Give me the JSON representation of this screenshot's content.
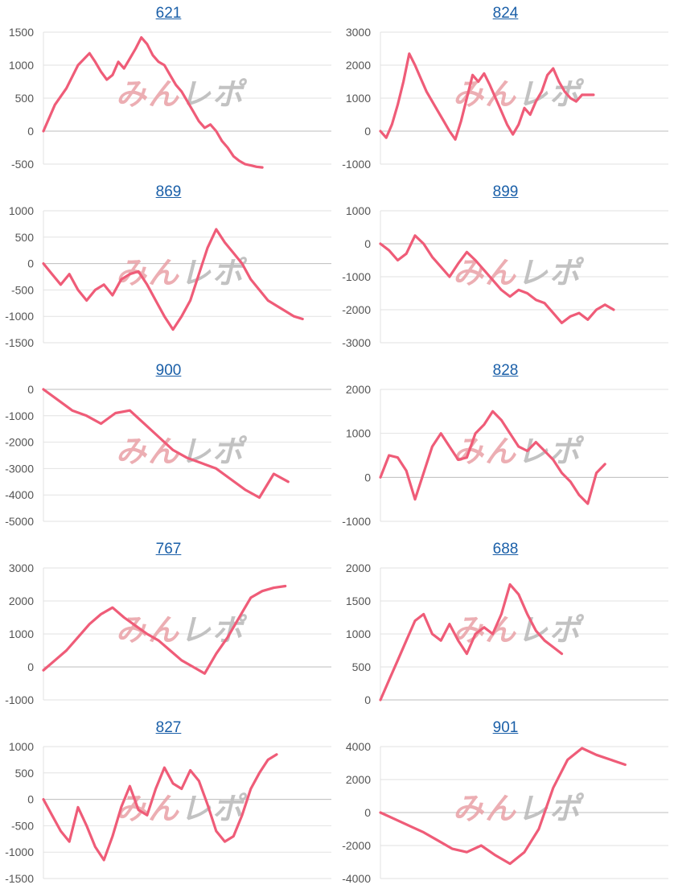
{
  "watermark": "みんレポ",
  "colors": {
    "line": "#ef5c78",
    "grid": "#e2e2e2",
    "zero": "#bdbdbd",
    "link": "#1a5fa8",
    "watermark_pink": "#e9a1a6",
    "watermark_gray": "#b8b8b8"
  },
  "chart_data": [
    {
      "type": "line",
      "title": "621",
      "ylim": [
        -500,
        1500
      ],
      "ticks": [
        1500,
        1000,
        500,
        0,
        -500
      ],
      "xlim": [
        0,
        100
      ],
      "x": [
        0,
        4,
        8,
        12,
        16,
        18,
        20,
        22,
        24,
        26,
        28,
        30,
        32,
        34,
        36,
        38,
        40,
        42,
        44,
        46,
        48,
        50,
        52,
        54,
        56,
        58,
        60,
        62,
        64,
        66,
        68,
        70,
        72,
        74,
        76
      ],
      "y": [
        0,
        400,
        650,
        1000,
        1180,
        1050,
        900,
        780,
        850,
        1050,
        950,
        1100,
        1250,
        1420,
        1320,
        1150,
        1050,
        1000,
        850,
        700,
        600,
        450,
        300,
        150,
        50,
        100,
        0,
        -150,
        -250,
        -380,
        -450,
        -500,
        -520,
        -540,
        -550
      ]
    },
    {
      "type": "line",
      "title": "824",
      "ylim": [
        -1000,
        3000
      ],
      "ticks": [
        3000,
        2000,
        1000,
        0,
        -1000
      ],
      "xlim": [
        0,
        100
      ],
      "x": [
        0,
        2,
        4,
        6,
        8,
        10,
        12,
        14,
        16,
        18,
        20,
        22,
        24,
        26,
        28,
        30,
        32,
        34,
        36,
        38,
        40,
        42,
        44,
        46,
        48,
        50,
        52,
        54,
        56,
        58,
        60,
        62,
        64,
        66,
        68,
        70,
        72,
        74
      ],
      "y": [
        0,
        -200,
        200,
        800,
        1500,
        2350,
        2000,
        1600,
        1200,
        900,
        600,
        300,
        0,
        -250,
        300,
        1000,
        1700,
        1500,
        1750,
        1400,
        1000,
        600,
        200,
        -100,
        200,
        700,
        500,
        900,
        1200,
        1700,
        1900,
        1500,
        1200,
        1000,
        900,
        1100,
        1100,
        1100
      ]
    },
    {
      "type": "line",
      "title": "869",
      "ylim": [
        -1500,
        1000
      ],
      "ticks": [
        1000,
        500,
        0,
        -500,
        -1000,
        -1500
      ],
      "xlim": [
        0,
        100
      ],
      "x": [
        0,
        3,
        6,
        9,
        12,
        15,
        18,
        21,
        24,
        27,
        30,
        33,
        36,
        39,
        42,
        45,
        48,
        51,
        54,
        57,
        60,
        63,
        66,
        69,
        72,
        75,
        78,
        81,
        84,
        87,
        90
      ],
      "y": [
        0,
        -200,
        -400,
        -200,
        -500,
        -700,
        -500,
        -400,
        -600,
        -300,
        -200,
        -150,
        -400,
        -700,
        -1000,
        -1250,
        -1000,
        -700,
        -200,
        300,
        650,
        400,
        200,
        0,
        -300,
        -500,
        -700,
        -800,
        -900,
        -1000,
        -1050
      ]
    },
    {
      "type": "line",
      "title": "899",
      "ylim": [
        -3000,
        1000
      ],
      "ticks": [
        1000,
        0,
        -1000,
        -2000,
        -3000
      ],
      "xlim": [
        0,
        100
      ],
      "x": [
        0,
        3,
        6,
        9,
        12,
        15,
        18,
        21,
        24,
        27,
        30,
        33,
        36,
        39,
        42,
        45,
        48,
        51,
        54,
        57,
        60,
        63,
        66,
        69,
        72,
        75,
        78,
        81
      ],
      "y": [
        0,
        -200,
        -500,
        -300,
        250,
        0,
        -400,
        -700,
        -1000,
        -600,
        -250,
        -500,
        -800,
        -1100,
        -1400,
        -1600,
        -1400,
        -1500,
        -1700,
        -1800,
        -2100,
        -2400,
        -2200,
        -2100,
        -2300,
        -2000,
        -1850,
        -2000
      ]
    },
    {
      "type": "line",
      "title": "900",
      "ylim": [
        -5000,
        0
      ],
      "ticks": [
        0,
        -1000,
        -2000,
        -3000,
        -4000,
        -5000
      ],
      "xlim": [
        0,
        100
      ],
      "x": [
        0,
        5,
        10,
        15,
        20,
        25,
        30,
        35,
        40,
        45,
        50,
        55,
        60,
        65,
        70,
        75,
        80,
        85
      ],
      "y": [
        0,
        -400,
        -800,
        -1000,
        -1300,
        -900,
        -800,
        -1300,
        -1800,
        -2300,
        -2600,
        -2800,
        -3000,
        -3400,
        -3800,
        -4100,
        -3200,
        -3500
      ]
    },
    {
      "type": "line",
      "title": "828",
      "ylim": [
        -1000,
        2000
      ],
      "ticks": [
        2000,
        1000,
        0,
        -1000
      ],
      "xlim": [
        0,
        100
      ],
      "x": [
        0,
        3,
        6,
        9,
        12,
        15,
        18,
        21,
        24,
        27,
        30,
        33,
        36,
        39,
        42,
        45,
        48,
        51,
        54,
        57,
        60,
        63,
        66,
        69,
        72,
        75,
        78
      ],
      "y": [
        0,
        500,
        450,
        150,
        -500,
        100,
        700,
        1000,
        700,
        400,
        450,
        1000,
        1200,
        1500,
        1300,
        1000,
        700,
        600,
        800,
        600,
        400,
        100,
        -100,
        -400,
        -600,
        100,
        300
      ]
    },
    {
      "type": "line",
      "title": "767",
      "ylim": [
        -1000,
        3000
      ],
      "ticks": [
        3000,
        2000,
        1000,
        0,
        -1000
      ],
      "xlim": [
        0,
        100
      ],
      "x": [
        0,
        4,
        8,
        12,
        16,
        20,
        24,
        28,
        32,
        36,
        40,
        44,
        48,
        52,
        56,
        60,
        64,
        68,
        72,
        76,
        80,
        84
      ],
      "y": [
        -100,
        200,
        500,
        900,
        1300,
        1600,
        1800,
        1500,
        1250,
        1000,
        800,
        500,
        200,
        0,
        -200,
        400,
        900,
        1500,
        2100,
        2300,
        2400,
        2450
      ]
    },
    {
      "type": "line",
      "title": "688",
      "ylim": [
        0,
        2000
      ],
      "ticks": [
        2000,
        1500,
        1000,
        500,
        0
      ],
      "xlim": [
        0,
        100
      ],
      "x": [
        0,
        3,
        6,
        9,
        12,
        15,
        18,
        21,
        24,
        27,
        30,
        33,
        36,
        39,
        42,
        45,
        48,
        51,
        54,
        57,
        60,
        63
      ],
      "y": [
        0,
        300,
        600,
        900,
        1200,
        1300,
        1000,
        900,
        1150,
        900,
        700,
        1000,
        1100,
        1000,
        1300,
        1750,
        1600,
        1300,
        1050,
        900,
        800,
        700
      ]
    },
    {
      "type": "line",
      "title": "827",
      "ylim": [
        -1500,
        1000
      ],
      "ticks": [
        1000,
        500,
        0,
        -500,
        -1000,
        -1500
      ],
      "xlim": [
        0,
        100
      ],
      "x": [
        0,
        3,
        6,
        9,
        12,
        15,
        18,
        21,
        24,
        27,
        30,
        33,
        36,
        39,
        42,
        45,
        48,
        51,
        54,
        57,
        60,
        63,
        66,
        69,
        72,
        75,
        78,
        81
      ],
      "y": [
        0,
        -300,
        -600,
        -800,
        -150,
        -500,
        -900,
        -1150,
        -700,
        -150,
        250,
        -200,
        -300,
        200,
        600,
        300,
        200,
        550,
        350,
        -100,
        -600,
        -800,
        -700,
        -300,
        200,
        500,
        750,
        850
      ]
    },
    {
      "type": "line",
      "title": "901",
      "ylim": [
        -4000,
        4000
      ],
      "ticks": [
        4000,
        2000,
        0,
        -2000,
        -4000
      ],
      "xlim": [
        0,
        100
      ],
      "x": [
        0,
        5,
        10,
        15,
        20,
        25,
        30,
        35,
        40,
        45,
        50,
        55,
        60,
        65,
        70,
        75,
        80,
        85
      ],
      "y": [
        0,
        -400,
        -800,
        -1200,
        -1700,
        -2200,
        -2400,
        -2000,
        -2600,
        -3100,
        -2400,
        -1000,
        1500,
        3200,
        3900,
        3500,
        3200,
        2900
      ]
    }
  ]
}
